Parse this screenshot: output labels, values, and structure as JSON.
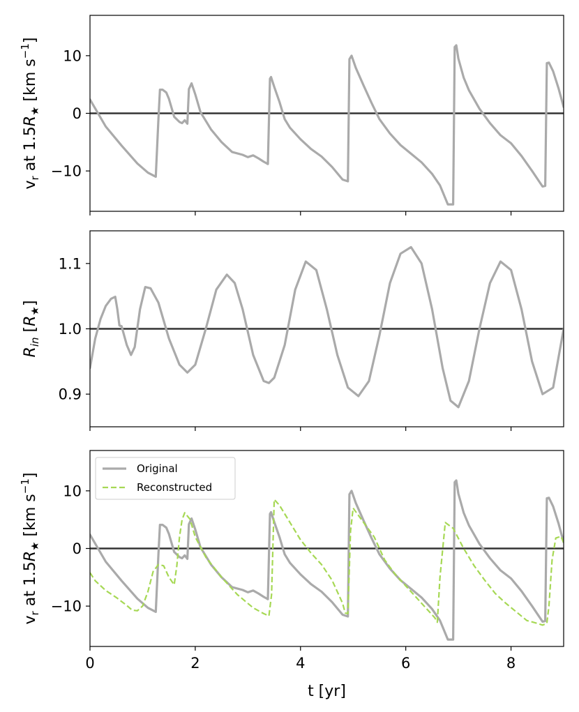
{
  "colors": {
    "original": "#aaaaaa",
    "reconstructed": "#a6d854",
    "reference": "#333333",
    "frame": "#000000"
  },
  "chart_data": [
    {
      "type": "line",
      "xlabel": "",
      "ylabel_base": "v",
      "ylabel_sub": "r",
      "ylabel_mid": " at 1.5",
      "ylabel_R": "R",
      "ylabel_star": "★",
      "ylabel_unit": " [km s",
      "ylabel_exp": "−1",
      "ylabel_close": "]",
      "xlim": [
        0,
        9
      ],
      "ylim": [
        -17,
        17
      ],
      "xticks": [
        0,
        2,
        4,
        6,
        8
      ],
      "yticks": [
        -10,
        0,
        10
      ],
      "ytick_labels": [
        "−10",
        "0",
        "10"
      ],
      "reference_line": 0,
      "series": [
        {
          "key": "original",
          "x": [
            0,
            0.3,
            0.6,
            0.9,
            1.1,
            1.25,
            1.3,
            1.33,
            1.38,
            1.45,
            1.5,
            1.6,
            1.7,
            1.75,
            1.8,
            1.85,
            1.88,
            1.93,
            2.0,
            2.1,
            2.3,
            2.5,
            2.7,
            2.9,
            3.0,
            3.1,
            3.2,
            3.3,
            3.38,
            3.42,
            3.44,
            3.5,
            3.6,
            3.7,
            3.8,
            4.0,
            4.2,
            4.4,
            4.6,
            4.8,
            4.9,
            4.93,
            4.97,
            5.05,
            5.2,
            5.35,
            5.5,
            5.7,
            5.9,
            6.1,
            6.3,
            6.5,
            6.65,
            6.8,
            6.9,
            6.93,
            6.96,
            7.0,
            7.1,
            7.2,
            7.4,
            7.6,
            7.8,
            8.0,
            8.2,
            8.4,
            8.6,
            8.65,
            8.68,
            8.72,
            8.8,
            8.9,
            9.0
          ],
          "y": [
            2.4,
            -2.3,
            -5.6,
            -8.7,
            -10.3,
            -11.0,
            -1.0,
            4.1,
            4.1,
            3.6,
            2.5,
            -0.6,
            -1.5,
            -1.7,
            -1.2,
            -1.8,
            4.2,
            5.2,
            3.3,
            0.2,
            -2.8,
            -5.0,
            -6.7,
            -7.2,
            -7.6,
            -7.3,
            -7.8,
            -8.4,
            -8.8,
            6.0,
            6.3,
            4.6,
            2.0,
            -1.0,
            -2.5,
            -4.5,
            -6.2,
            -7.5,
            -9.3,
            -11.5,
            -11.8,
            9.4,
            10.0,
            7.9,
            4.8,
            1.8,
            -1.0,
            -3.5,
            -5.5,
            -7.0,
            -8.5,
            -10.5,
            -12.5,
            -15.8,
            -15.8,
            11.5,
            11.8,
            9.5,
            6.2,
            4.0,
            0.8,
            -1.7,
            -3.8,
            -5.2,
            -7.4,
            -10.0,
            -12.7,
            -12.6,
            8.7,
            8.8,
            7.3,
            4.4,
            1.1
          ]
        }
      ]
    },
    {
      "type": "line",
      "xlabel": "",
      "ylabel_R": "R",
      "ylabel_sub": "in",
      "ylabel_open": " [",
      "ylabel_star": "★",
      "ylabel_close": "]",
      "xlim": [
        0,
        9
      ],
      "ylim": [
        0.85,
        1.15
      ],
      "xticks": [
        0,
        2,
        4,
        6,
        8
      ],
      "yticks": [
        0.9,
        1.0,
        1.1
      ],
      "ytick_labels": [
        "0.9",
        "1.0",
        "1.1"
      ],
      "reference_line": 1.0,
      "series": [
        {
          "key": "original",
          "x": [
            0,
            0.1,
            0.2,
            0.3,
            0.4,
            0.48,
            0.52,
            0.56,
            0.6,
            0.7,
            0.78,
            0.85,
            0.95,
            1.05,
            1.15,
            1.3,
            1.5,
            1.7,
            1.85,
            2.0,
            2.2,
            2.4,
            2.6,
            2.75,
            2.9,
            3.1,
            3.3,
            3.4,
            3.5,
            3.7,
            3.9,
            4.1,
            4.3,
            4.5,
            4.7,
            4.9,
            5.1,
            5.3,
            5.5,
            5.7,
            5.9,
            6.1,
            6.3,
            6.5,
            6.7,
            6.85,
            7.0,
            7.2,
            7.4,
            7.6,
            7.8,
            8.0,
            8.2,
            8.4,
            8.6,
            8.8,
            9.0
          ],
          "y": [
            0.94,
            0.985,
            1.015,
            1.035,
            1.046,
            1.049,
            1.03,
            1.005,
            1.004,
            0.975,
            0.96,
            0.972,
            1.03,
            1.064,
            1.062,
            1.04,
            0.985,
            0.945,
            0.933,
            0.945,
            1.0,
            1.06,
            1.083,
            1.07,
            1.03,
            0.96,
            0.92,
            0.917,
            0.925,
            0.975,
            1.06,
            1.103,
            1.09,
            1.03,
            0.96,
            0.91,
            0.897,
            0.92,
            0.99,
            1.07,
            1.115,
            1.125,
            1.1,
            1.03,
            0.94,
            0.89,
            0.88,
            0.92,
            1.0,
            1.07,
            1.103,
            1.09,
            1.03,
            0.95,
            0.9,
            0.91,
            1.0
          ]
        }
      ]
    },
    {
      "type": "line",
      "xlabel": "t [yr]",
      "ylabel_base": "v",
      "ylabel_sub": "r",
      "ylabel_mid": " at 1.5",
      "ylabel_R": "R",
      "ylabel_star": "★",
      "ylabel_unit": " [km s",
      "ylabel_exp": "−1",
      "ylabel_close": "]",
      "xlim": [
        0,
        9
      ],
      "ylim": [
        -17,
        17
      ],
      "xticks": [
        0,
        2,
        4,
        6,
        8
      ],
      "xtick_labels": [
        "0",
        "2",
        "4",
        "6",
        "8"
      ],
      "yticks": [
        -10,
        0,
        10
      ],
      "ytick_labels": [
        "−10",
        "0",
        "10"
      ],
      "reference_line": 0,
      "legend_placement": "upper-left",
      "series": [
        {
          "key": "original",
          "name": "Original",
          "x": [
            0,
            0.3,
            0.6,
            0.9,
            1.1,
            1.25,
            1.3,
            1.33,
            1.38,
            1.45,
            1.5,
            1.6,
            1.7,
            1.75,
            1.8,
            1.85,
            1.88,
            1.93,
            2.0,
            2.1,
            2.3,
            2.5,
            2.7,
            2.9,
            3.0,
            3.1,
            3.2,
            3.3,
            3.38,
            3.42,
            3.44,
            3.5,
            3.6,
            3.7,
            3.8,
            4.0,
            4.2,
            4.4,
            4.6,
            4.8,
            4.9,
            4.93,
            4.97,
            5.05,
            5.2,
            5.35,
            5.5,
            5.7,
            5.9,
            6.1,
            6.3,
            6.5,
            6.65,
            6.8,
            6.9,
            6.93,
            6.96,
            7.0,
            7.1,
            7.2,
            7.4,
            7.6,
            7.8,
            8.0,
            8.2,
            8.4,
            8.6,
            8.65,
            8.68,
            8.72,
            8.8,
            8.9,
            9.0
          ],
          "y": [
            2.4,
            -2.3,
            -5.6,
            -8.7,
            -10.3,
            -11.0,
            -1.0,
            4.1,
            4.1,
            3.6,
            2.5,
            -0.6,
            -1.5,
            -1.7,
            -1.2,
            -1.8,
            4.2,
            5.2,
            3.3,
            0.2,
            -2.8,
            -5.0,
            -6.7,
            -7.2,
            -7.6,
            -7.3,
            -7.8,
            -8.4,
            -8.8,
            6.0,
            6.3,
            4.6,
            2.0,
            -1.0,
            -2.5,
            -4.5,
            -6.2,
            -7.5,
            -9.3,
            -11.5,
            -11.8,
            9.4,
            10.0,
            7.9,
            4.8,
            1.8,
            -1.0,
            -3.5,
            -5.5,
            -7.0,
            -8.5,
            -10.5,
            -12.5,
            -15.8,
            -15.8,
            11.5,
            11.8,
            9.5,
            6.2,
            4.0,
            0.8,
            -1.7,
            -3.8,
            -5.2,
            -7.4,
            -10.0,
            -12.7,
            -12.6,
            8.7,
            8.8,
            7.3,
            4.4,
            1.1
          ]
        },
        {
          "key": "reconstructed",
          "name": "Reconstructed",
          "dashed": true,
          "x": [
            0,
            0.1,
            0.3,
            0.5,
            0.7,
            0.8,
            0.9,
            1.0,
            1.1,
            1.2,
            1.3,
            1.4,
            1.5,
            1.6,
            1.65,
            1.7,
            1.75,
            1.8,
            1.9,
            2.0,
            2.2,
            2.5,
            2.8,
            3.1,
            3.3,
            3.4,
            3.45,
            3.5,
            3.6,
            3.8,
            4.0,
            4.2,
            4.4,
            4.6,
            4.8,
            4.85,
            4.9,
            4.95,
            5.0,
            5.2,
            5.4,
            5.6,
            5.8,
            6.0,
            6.2,
            6.4,
            6.55,
            6.6,
            6.65,
            6.75,
            6.9,
            7.1,
            7.3,
            7.5,
            7.7,
            7.9,
            8.1,
            8.3,
            8.5,
            8.6,
            8.68,
            8.72,
            8.78,
            8.85,
            8.95,
            9.0
          ],
          "y": [
            -4.2,
            -5.6,
            -7.3,
            -8.5,
            -9.9,
            -10.7,
            -10.8,
            -10.0,
            -7.5,
            -4.0,
            -2.8,
            -3.0,
            -5.0,
            -6.3,
            -3.0,
            2.0,
            5.0,
            6.2,
            5.1,
            2.0,
            -1.5,
            -5.0,
            -8.0,
            -10.3,
            -11.3,
            -11.7,
            -8.0,
            8.5,
            7.5,
            4.5,
            1.5,
            -0.8,
            -2.8,
            -5.5,
            -9.5,
            -11.2,
            -11.3,
            3.0,
            7.0,
            4.5,
            2.0,
            -2.0,
            -4.5,
            -6.5,
            -8.5,
            -10.5,
            -12.0,
            -12.8,
            -5.0,
            4.5,
            3.5,
            0.0,
            -3.0,
            -5.5,
            -7.8,
            -9.5,
            -11.0,
            -12.5,
            -13.0,
            -13.3,
            -13.0,
            -10.0,
            -2.0,
            1.8,
            2.1,
            1.0
          ]
        }
      ]
    }
  ]
}
